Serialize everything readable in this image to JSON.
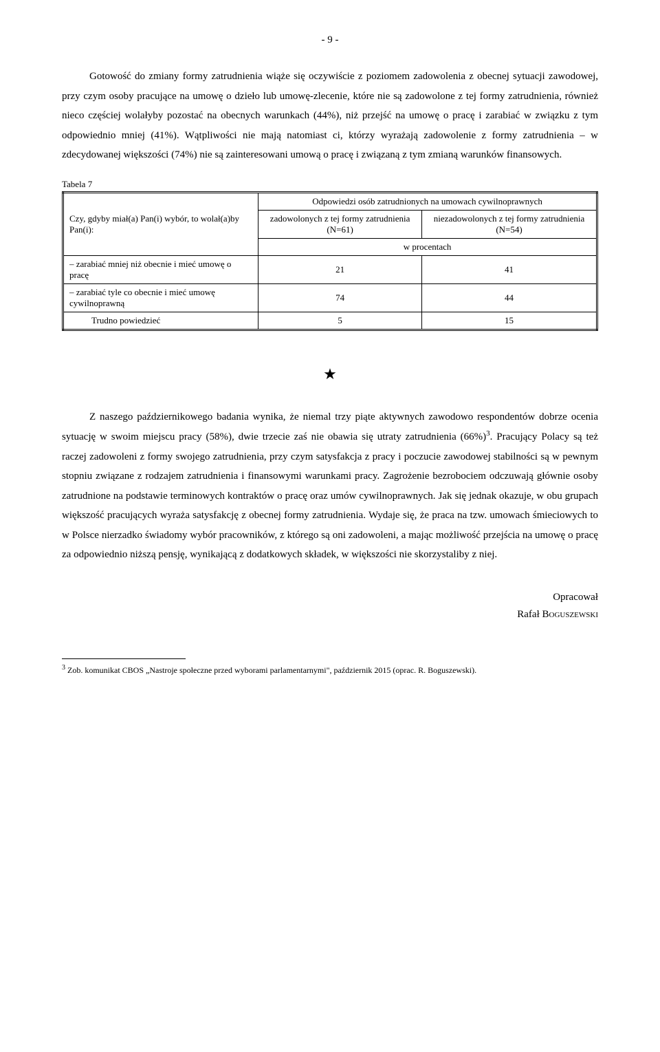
{
  "page_number": "- 9 -",
  "paragraph_1": "Gotowość do zmiany formy zatrudnienia wiąże się oczywiście z poziomem zadowolenia z obecnej sytuacji zawodowej, przy czym osoby pracujące na umowę o dzieło lub umowę-zlecenie, które nie są zadowolone z tej formy zatrudnienia, również nieco częściej wolałyby pozostać na obecnych warunkach (44%), niż przejść na umowę o pracę i zarabiać w związku z tym odpowiednio mniej (41%). Wątpliwości nie mają natomiast ci, którzy wyrażają zadowolenie z formy zatrudnienia – w zdecydowanej większości (74%) nie są zainteresowani umową o pracę i związaną z tym zmianą warunków finansowych.",
  "table": {
    "caption": "Tabela 7",
    "left_header": "Czy, gdyby miał(a) Pan(i) wybór, to wolał(a)by Pan(i):",
    "top_header": "Odpowiedzi osób zatrudnionych na umowach cywilnoprawnych",
    "col1_header": "zadowolonych z tej formy zatrudnienia (N=61)",
    "col2_header": "niezadowolonych z tej formy zatrudnienia (N=54)",
    "percent_label": "w procentach",
    "rows": [
      {
        "label": "– zarabiać mniej niż obecnie i mieć umowę o pracę",
        "v1": "21",
        "v2": "41",
        "indent": false
      },
      {
        "label": "– zarabiać tyle co obecnie i mieć umowę cywilnoprawną",
        "v1": "74",
        "v2": "44",
        "indent": false
      },
      {
        "label": "Trudno powiedzieć",
        "v1": "5",
        "v2": "15",
        "indent": true
      }
    ]
  },
  "star": "★",
  "paragraph_2_part1": "Z naszego październikowego badania wynika, że niemal trzy piąte aktywnych zawodowo respondentów dobrze ocenia sytuację w swoim miejscu pracy (58%), dwie trzecie zaś nie obawia się utraty zatrudnienia (66%)",
  "paragraph_2_sup": "3",
  "paragraph_2_part2": ". Pracujący Polacy są też raczej zadowoleni z formy swojego zatrudnienia, przy czym satysfakcja z pracy i poczucie zawodowej stabilności są w pewnym stopniu związane z rodzajem zatrudnienia i finansowymi warunkami pracy. Zagrożenie bezrobociem odczuwają głównie osoby zatrudnione na podstawie terminowych kontraktów o pracę oraz umów cywilnoprawnych. Jak się jednak okazuje, w obu grupach większość pracujących wyraża satysfakcję z obecnej formy zatrudnienia. Wydaje się, że praca na tzw. umowach śmieciowych to w Polsce nierzadko świadomy wybór pracowników, z którego są oni zadowoleni, a mając możliwość przejścia na umowę o pracę za odpowiednio niższą pensję, wynikającą z dodatkowych składek, w większości nie skorzystaliby z niej.",
  "author_line1": "Opracował",
  "author_line2_prefix": "Rafał ",
  "author_line2_name": "Boguszewski",
  "footnote_sup": "3",
  "footnote_text": " Zob. komunikat CBOS „Nastroje społeczne przed wyborami parlamentarnymi\", październik 2015 (oprac. R. Boguszewski)."
}
